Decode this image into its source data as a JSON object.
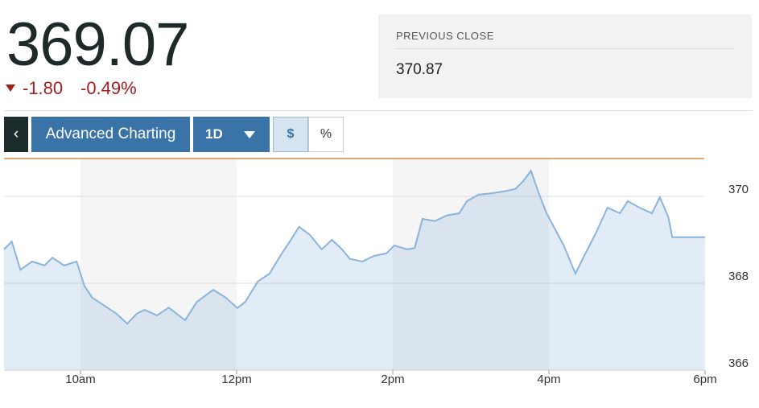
{
  "quote": {
    "price": "369.07",
    "change": "-1.80",
    "change_percent": "-0.49%",
    "previous_close": {
      "label": "PREVIOUS CLOSE",
      "value": 370.87
    }
  },
  "toolbar": {
    "advanced": "Advanced Charting",
    "range": "1D",
    "dollar": "$",
    "percent": "%"
  },
  "chart_data": {
    "type": "area",
    "x": [
      9.02,
      9.12,
      9.23,
      9.38,
      9.54,
      9.64,
      9.79,
      9.95,
      10.05,
      10.15,
      10.31,
      10.46,
      10.6,
      10.72,
      10.82,
      10.98,
      11.13,
      11.34,
      11.49,
      11.7,
      11.86,
      12.01,
      12.11,
      12.27,
      12.42,
      12.58,
      12.68,
      12.8,
      12.94,
      13.09,
      13.22,
      13.35,
      13.45,
      13.61,
      13.76,
      13.92,
      14.02,
      14.18,
      14.28,
      14.38,
      14.54,
      14.69,
      14.85,
      14.95,
      15.1,
      15.26,
      15.41,
      15.57,
      15.67,
      15.77,
      15.87,
      15.97,
      16.08,
      16.19,
      16.34,
      16.44,
      16.6,
      16.75,
      16.91,
      17.01,
      17.16,
      17.32,
      17.42,
      17.53,
      17.58,
      18
    ],
    "series": [
      {
        "color": "#8ab4dc",
        "values": [
          368.78,
          368.96,
          368.31,
          368.5,
          368.41,
          368.59,
          368.41,
          368.5,
          367.94,
          367.67,
          367.48,
          367.3,
          367.07,
          367.3,
          367.39,
          367.26,
          367.44,
          367.15,
          367.57,
          367.85,
          367.67,
          367.43,
          367.57,
          368.04,
          368.22,
          368.69,
          368.96,
          369.3,
          369.11,
          368.78,
          369,
          368.78,
          368.56,
          368.5,
          368.63,
          368.69,
          368.87,
          368.78,
          368.81,
          369.48,
          369.43,
          369.56,
          369.61,
          369.89,
          370.04,
          370.07,
          370.11,
          370.17,
          370.35,
          370.59,
          370.07,
          369.61,
          369.24,
          368.87,
          368.22,
          368.59,
          369.15,
          369.74,
          369.61,
          369.89,
          369.74,
          369.61,
          369.98,
          369.52,
          369.06,
          369.06
        ]
      }
    ],
    "xlim": [
      9,
      18
    ],
    "xticks": [
      {
        "value": 10,
        "label": "10am"
      },
      {
        "value": 12,
        "label": "12pm"
      },
      {
        "value": 14,
        "label": "2pm"
      },
      {
        "value": 16,
        "label": "4pm"
      },
      {
        "value": 18,
        "label": "6pm"
      }
    ],
    "ylim": [
      366,
      370.87
    ],
    "yticks": [
      366,
      368,
      370
    ],
    "grid": true
  }
}
